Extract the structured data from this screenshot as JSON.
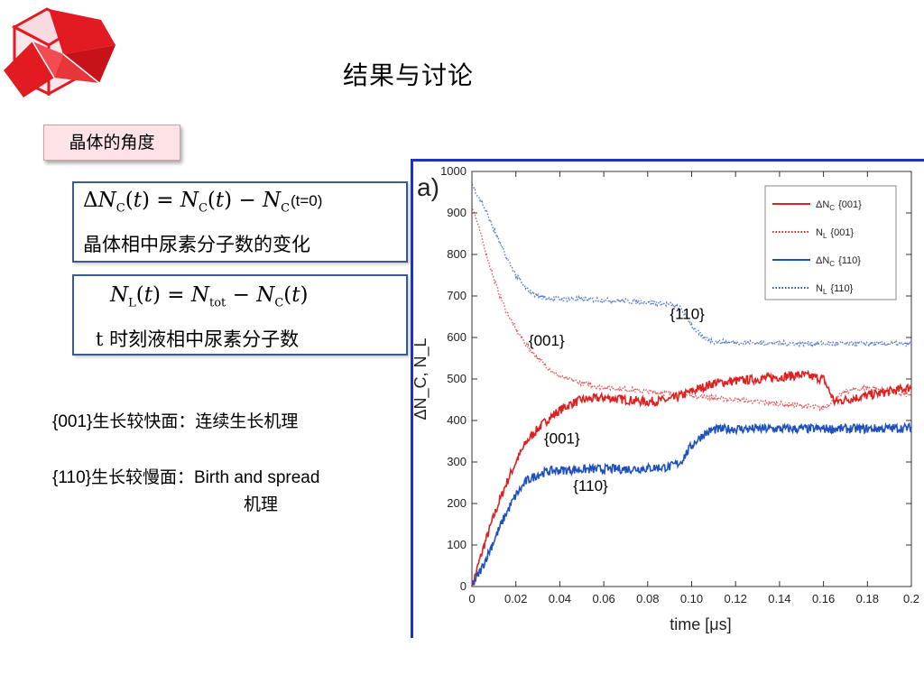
{
  "slide": {
    "title": "结果与讨论",
    "tag": "晶体的角度"
  },
  "box1": {
    "formula_note": "(t=0)",
    "description": "晶体相中尿素分子数的变化"
  },
  "box2": {
    "description": "t 时刻液相中尿素分子数"
  },
  "findings": [
    {
      "face": "{001}",
      "text": "生长较快面：连续生长机理"
    },
    {
      "face": "{110}",
      "text": "生长较慢面：",
      "text_en": "Birth and spread",
      "text_cont": "机理"
    }
  ],
  "colors": {
    "red": "#e02020",
    "blue": "#1f50c0",
    "logo": "#e21b23",
    "frame": "#1a33cc"
  },
  "chart_data": {
    "type": "line",
    "panel_label": "a)",
    "xlabel": "time [μs]",
    "ylabel": "ΔN_C, N_L",
    "xlim": [
      0,
      0.2
    ],
    "ylim": [
      0,
      1000
    ],
    "xticks": [
      "0",
      "0.02",
      "0.04",
      "0.06",
      "0.08",
      "0.10",
      "0.12",
      "0.14",
      "0.16",
      "0.18",
      "0.2"
    ],
    "yticks": [
      "0",
      "100",
      "200",
      "300",
      "400",
      "500",
      "600",
      "700",
      "800",
      "900",
      "1000"
    ],
    "legend_position": "top-right",
    "series": [
      {
        "name": "ΔN_C{001}",
        "legend_main": "ΔN",
        "legend_sub": "C",
        "legend_face": "{001}",
        "color": "#e02020",
        "style": "solid",
        "x": [
          0,
          0.005,
          0.01,
          0.015,
          0.02,
          0.025,
          0.03,
          0.035,
          0.04,
          0.045,
          0.05,
          0.06,
          0.07,
          0.08,
          0.09,
          0.1,
          0.11,
          0.12,
          0.13,
          0.14,
          0.15,
          0.16,
          0.165,
          0.17,
          0.18,
          0.19,
          0.2
        ],
        "y": [
          0,
          90,
          170,
          240,
          300,
          350,
          380,
          405,
          425,
          440,
          450,
          455,
          450,
          445,
          450,
          470,
          490,
          495,
          500,
          505,
          510,
          500,
          445,
          450,
          460,
          470,
          480
        ]
      },
      {
        "name": "N_L {001}",
        "legend_main": "N",
        "legend_sub": "L",
        "legend_face": "{001}",
        "color": "#e02020",
        "style": "dotted",
        "x": [
          0,
          0.005,
          0.01,
          0.015,
          0.02,
          0.025,
          0.03,
          0.035,
          0.04,
          0.05,
          0.06,
          0.07,
          0.08,
          0.09,
          0.1,
          0.11,
          0.12,
          0.13,
          0.14,
          0.15,
          0.16,
          0.17,
          0.18,
          0.19,
          0.2
        ],
        "y": [
          920,
          830,
          740,
          670,
          620,
          580,
          550,
          525,
          505,
          490,
          480,
          475,
          470,
          465,
          460,
          455,
          450,
          445,
          440,
          435,
          430,
          470,
          480,
          470,
          460
        ]
      },
      {
        "name": "ΔN_C{110}",
        "legend_main": "ΔN",
        "legend_sub": "C",
        "legend_face": "{110}",
        "color": "#1f50c0",
        "style": "solid",
        "x": [
          0,
          0.005,
          0.01,
          0.015,
          0.02,
          0.025,
          0.03,
          0.035,
          0.04,
          0.05,
          0.06,
          0.07,
          0.08,
          0.09,
          0.095,
          0.1,
          0.105,
          0.11,
          0.12,
          0.14,
          0.16,
          0.18,
          0.2
        ],
        "y": [
          0,
          50,
          110,
          170,
          220,
          255,
          270,
          278,
          280,
          282,
          283,
          283,
          285,
          288,
          300,
          340,
          365,
          378,
          380,
          380,
          380,
          380,
          382
        ]
      },
      {
        "name": "N_L {110}",
        "legend_main": "N",
        "legend_sub": "L",
        "legend_face": "{110}",
        "color": "#1f50c0",
        "style": "dotted",
        "x": [
          0,
          0.005,
          0.01,
          0.015,
          0.02,
          0.025,
          0.03,
          0.035,
          0.04,
          0.05,
          0.06,
          0.07,
          0.08,
          0.09,
          0.095,
          0.1,
          0.105,
          0.11,
          0.12,
          0.14,
          0.16,
          0.18,
          0.2
        ],
        "y": [
          970,
          920,
          860,
          800,
          750,
          715,
          700,
          695,
          693,
          692,
          690,
          688,
          685,
          680,
          670,
          630,
          600,
          590,
          588,
          586,
          585,
          585,
          584
        ]
      }
    ],
    "annotations": [
      {
        "text": "{110}",
        "x": 0.098,
        "y": 645
      },
      {
        "text": "{001}",
        "x": 0.034,
        "y": 580
      },
      {
        "text": "{001}",
        "x": 0.041,
        "y": 345
      },
      {
        "text": "{110}",
        "x": 0.054,
        "y": 230
      }
    ]
  }
}
